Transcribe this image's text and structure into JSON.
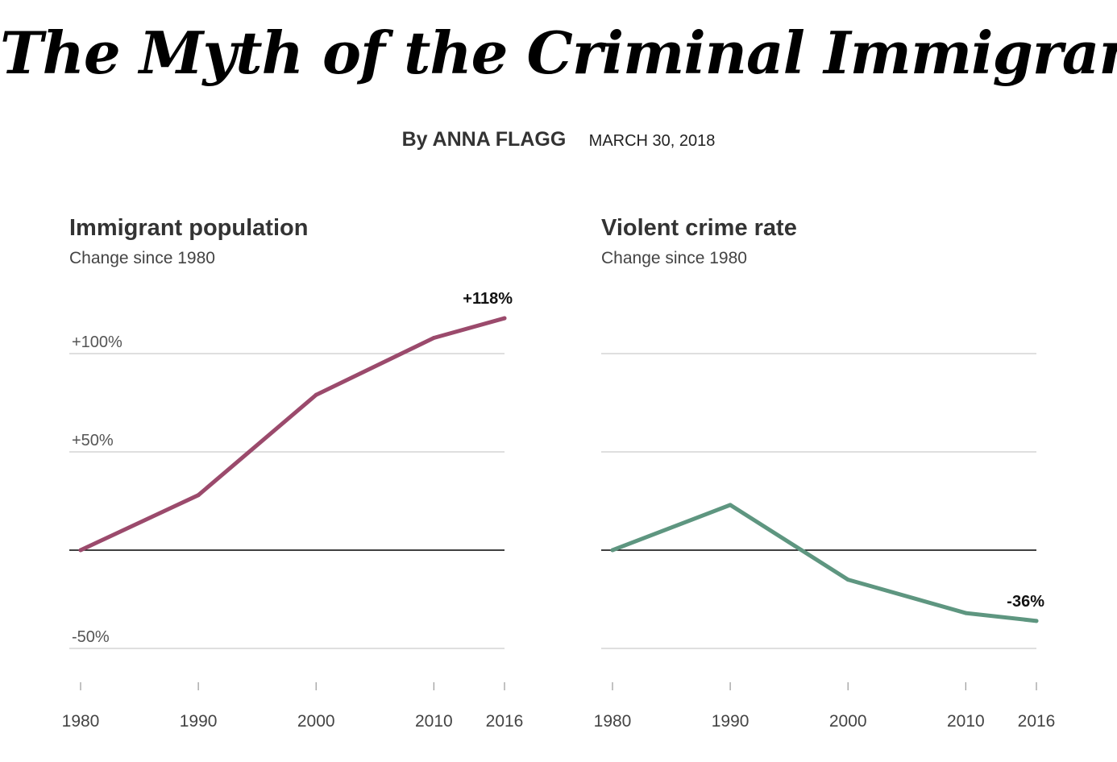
{
  "article": {
    "headline": "The Myth of the Criminal Immigrant",
    "author": "By ANNA FLAGG",
    "date": "MARCH 30, 2018"
  },
  "colors": {
    "immigrant_line": "#9b4a6c",
    "crime_line": "#5e9680",
    "gridline": "#cccccc",
    "zero_line": "#000000"
  },
  "chart_data": [
    {
      "type": "line",
      "title": "Immigrant population",
      "subtitle": "Change since 1980",
      "x": [
        1980,
        1990,
        2000,
        2010,
        2016
      ],
      "x_tick_labels": [
        "1980",
        "1990",
        "2000",
        "2010",
        "2016"
      ],
      "series": [
        {
          "values": [
            0,
            28,
            79,
            108,
            118
          ]
        }
      ],
      "ylim": [
        -60,
        130
      ],
      "y_ticks": [
        100,
        50,
        0,
        -50
      ],
      "y_tick_labels": [
        "+100%",
        "+50%",
        "",
        "-50%"
      ],
      "end_label": "+118%",
      "grid": true
    },
    {
      "type": "line",
      "title": "Violent crime rate",
      "subtitle": "Change since 1980",
      "x": [
        1980,
        1990,
        2000,
        2010,
        2016
      ],
      "x_tick_labels": [
        "1980",
        "1990",
        "2000",
        "2010",
        "2016"
      ],
      "series": [
        {
          "values": [
            0,
            23,
            -15,
            -32,
            -36
          ]
        }
      ],
      "ylim": [
        -60,
        130
      ],
      "y_ticks": [
        100,
        50,
        0,
        -50
      ],
      "y_tick_labels": [
        "",
        "",
        "",
        ""
      ],
      "end_label": "-36%",
      "grid": true
    }
  ]
}
